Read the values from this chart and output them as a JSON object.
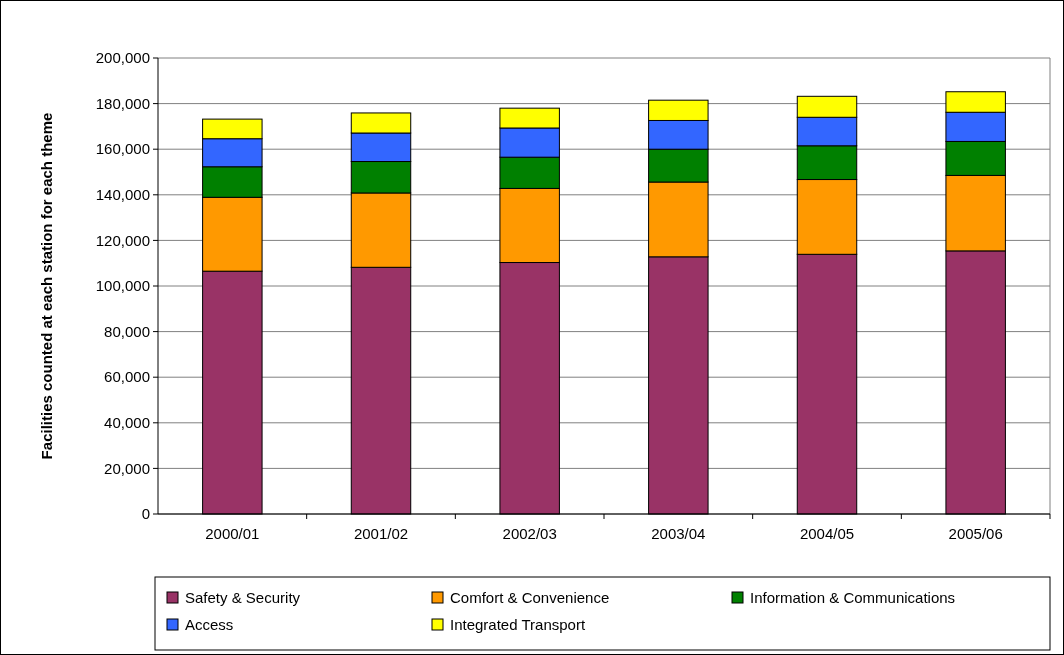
{
  "chart_data": {
    "type": "bar",
    "stacked": true,
    "ylabel": "Facilities counted at each station for each theme",
    "categories": [
      "2000/01",
      "2001/02",
      "2002/03",
      "2003/04",
      "2004/05",
      "2005/06"
    ],
    "series": [
      {
        "name": "Safety & Security",
        "color": "#993366",
        "values": [
          106500,
          108200,
          110300,
          112800,
          113900,
          115400
        ]
      },
      {
        "name": "Comfort & Convenience",
        "color": "#ff9900",
        "values": [
          32400,
          32600,
          32500,
          32800,
          32800,
          33100
        ]
      },
      {
        "name": "Information & Communications",
        "color": "#008000",
        "values": [
          13400,
          13800,
          13700,
          14400,
          14800,
          14900
        ]
      },
      {
        "name": "Access",
        "color": "#3366ff",
        "values": [
          12300,
          12500,
          12800,
          12600,
          12500,
          12800
        ]
      },
      {
        "name": "Integrated Transport",
        "color": "#ffff00",
        "values": [
          8600,
          8800,
          8700,
          8900,
          9200,
          9000
        ]
      }
    ],
    "ylim": [
      0,
      200000
    ],
    "yticks": [
      {
        "value": 0,
        "label": "0"
      },
      {
        "value": 20000,
        "label": "20,000"
      },
      {
        "value": 40000,
        "label": "40,000"
      },
      {
        "value": 60000,
        "label": "60,000"
      },
      {
        "value": 80000,
        "label": "80,000"
      },
      {
        "value": 100000,
        "label": "100,000"
      },
      {
        "value": 120000,
        "label": "120,000"
      },
      {
        "value": 140000,
        "label": "140,000"
      },
      {
        "value": 160000,
        "label": "160,000"
      },
      {
        "value": 180000,
        "label": "180,000"
      },
      {
        "value": 200000,
        "label": "200,000"
      }
    ],
    "grid": "y",
    "legend": "bottom"
  }
}
